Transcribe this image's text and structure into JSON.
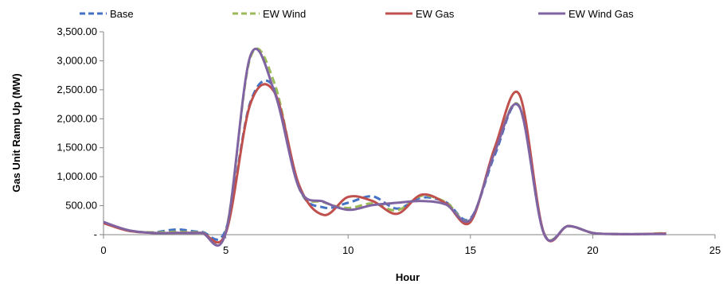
{
  "chart_data": {
    "type": "line",
    "title": "",
    "xlabel": "Hour",
    "ylabel": "Gas Unit Ramp Up (MW)",
    "xlim": [
      0,
      25
    ],
    "ylim": [
      0,
      3500
    ],
    "x_ticks": [
      0,
      5,
      10,
      15,
      20,
      25
    ],
    "x_tick_labels": [
      "0",
      "5",
      "10",
      "15",
      "20",
      "25"
    ],
    "y_ticks": [
      0,
      500,
      1000,
      1500,
      2000,
      2500,
      3000,
      3500
    ],
    "y_tick_labels": [
      "-",
      "500.00",
      "1,000.00",
      "1,500.00",
      "2,000.00",
      "2,500.00",
      "3,000.00",
      "3,500.00"
    ],
    "legend_position": "top",
    "grid": false,
    "x": [
      0,
      1,
      2,
      3,
      4,
      5,
      6,
      7,
      8,
      9,
      10,
      11,
      12,
      13,
      14,
      15,
      16,
      17,
      18,
      19,
      20,
      21,
      22,
      23
    ],
    "series": [
      {
        "name": "Base",
        "color": "#4472C4",
        "dash": "dashed",
        "values": [
          220,
          70,
          40,
          90,
          50,
          90,
          2280,
          2520,
          800,
          470,
          550,
          660,
          450,
          640,
          560,
          280,
          1380,
          2210,
          30,
          150,
          30,
          10,
          10,
          20
        ]
      },
      {
        "name": "EW Wind",
        "color": "#9BBB59",
        "dash": "dashed",
        "values": [
          200,
          70,
          40,
          50,
          40,
          60,
          3050,
          2600,
          800,
          560,
          460,
          540,
          420,
          670,
          560,
          260,
          1440,
          2220,
          30,
          150,
          30,
          10,
          10,
          30
        ]
      },
      {
        "name": "EW Gas",
        "color": "#C0504D",
        "dash": "solid",
        "values": [
          200,
          70,
          30,
          30,
          30,
          30,
          2250,
          2450,
          850,
          340,
          650,
          580,
          360,
          690,
          540,
          220,
          1510,
          2420,
          30,
          150,
          30,
          10,
          10,
          20
        ]
      },
      {
        "name": "EW Wind Gas",
        "color": "#8064A2",
        "dash": "solid",
        "values": [
          220,
          80,
          30,
          30,
          30,
          40,
          3080,
          2450,
          800,
          570,
          430,
          510,
          550,
          580,
          520,
          260,
          1430,
          2210,
          20,
          150,
          30,
          10,
          10,
          10
        ]
      }
    ]
  }
}
